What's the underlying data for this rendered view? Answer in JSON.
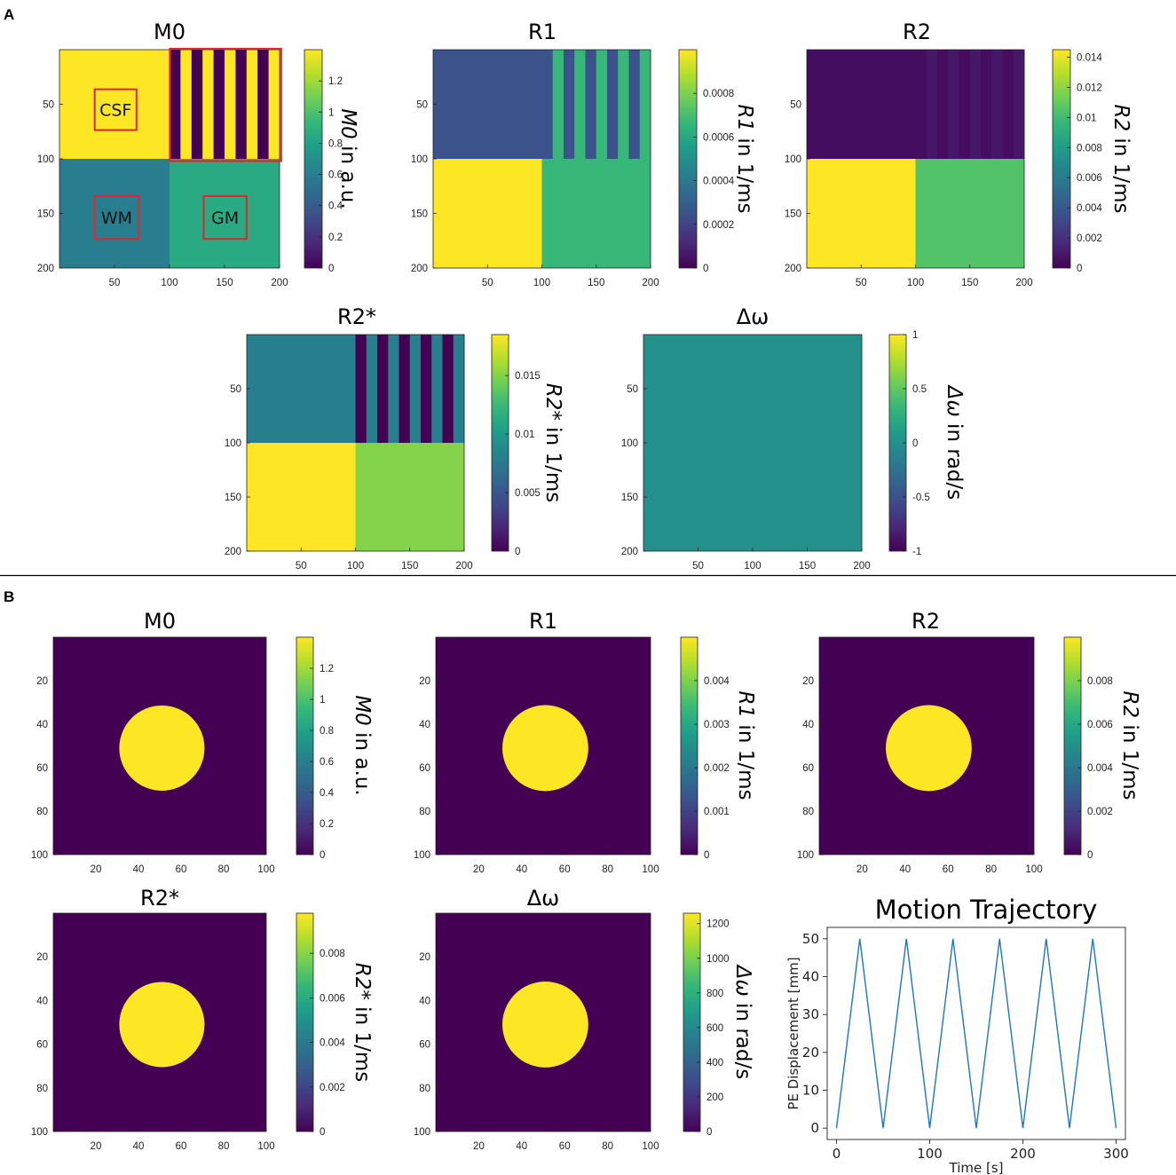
{
  "panel_labels": {
    "a": "A",
    "b": "B"
  },
  "colors": {
    "v0": "#440154",
    "v_low": "#3a528b",
    "v_mid": "#21918c",
    "v_green": "#35b779",
    "v_lime": "#7ad151",
    "v_yellow": "#fde725",
    "wm": "#2c7c8e",
    "gm": "#1fa187",
    "r1_top": "#33598c",
    "r2_top": "#481a6c",
    "r2_stripe": "#46145e",
    "r2_green": "#3fbc73",
    "r2s_top": "#2a788e",
    "roi": "#e0262b",
    "line": "#1f77b4"
  },
  "roi_labels": {
    "csf": "CSF",
    "wm": "WM",
    "gm": "GM"
  },
  "chart_data": [
    {
      "type": "heatmap",
      "id": "A-M0",
      "title": "M0",
      "cbar_label": "M0 in a.u.",
      "cbar_label_italic": "M0",
      "cbar_label_rest": " in a.u.",
      "cbar_range": [
        0,
        1.4
      ],
      "cbar_ticks": [
        "0",
        "0.2",
        "0.4",
        "0.6",
        "0.8",
        "1",
        "1.2"
      ],
      "xlim": [
        0,
        200
      ],
      "ylim": [
        0,
        200
      ],
      "xticks": [
        "50",
        "100",
        "150",
        "200"
      ],
      "yticks": [
        "50",
        "100",
        "150",
        "200"
      ],
      "regions": {
        "CSF": 1.4,
        "WM": 0.6,
        "GM": 0.85,
        "stripe_low": 0,
        "stripe_high": 1.4
      }
    },
    {
      "type": "heatmap",
      "id": "A-R1",
      "title": "R1",
      "cbar_label": "R1 in 1/ms",
      "cbar_label_italic": "R1",
      "cbar_label_rest": " in 1/ms",
      "cbar_range": [
        0,
        0.001
      ],
      "cbar_ticks": [
        "0",
        "0.0002",
        "0.0004",
        "0.0006",
        "0.0008"
      ],
      "xlim": [
        0,
        200
      ],
      "ylim": [
        0,
        200
      ],
      "xticks": [
        "50",
        "100",
        "150",
        "200"
      ],
      "yticks": [
        "50",
        "100",
        "150",
        "200"
      ],
      "regions": {
        "CSF": 0.00025,
        "WM": 0.001,
        "GM": 0.00067,
        "stripe_low": 0.00025,
        "stripe_high": 0.00067
      }
    },
    {
      "type": "heatmap",
      "id": "A-R2",
      "title": "R2",
      "cbar_label": "R2 in 1/ms",
      "cbar_label_italic": "R2",
      "cbar_label_rest": " in 1/ms",
      "cbar_range": [
        0,
        0.0145
      ],
      "cbar_ticks": [
        "0",
        "0.002",
        "0.004",
        "0.006",
        "0.008",
        "0.01",
        "0.012",
        "0.014"
      ],
      "xlim": [
        0,
        200
      ],
      "ylim": [
        0,
        200
      ],
      "xticks": [
        "50",
        "100",
        "150",
        "200"
      ],
      "yticks": [
        "50",
        "100",
        "150",
        "200"
      ],
      "regions": {
        "CSF": 0.0005,
        "WM": 0.0145,
        "GM": 0.0105,
        "stripe_low": 0.0005,
        "stripe_high": 0.0009
      }
    },
    {
      "type": "heatmap",
      "id": "A-R2s",
      "title": "R2*",
      "cbar_label": "R2* in 1/ms",
      "cbar_label_italic": "R2*",
      "cbar_label_rest": " in 1/ms",
      "cbar_range": [
        0,
        0.0185
      ],
      "cbar_ticks": [
        "0",
        "0.005",
        "0.01",
        "0.015"
      ],
      "xlim": [
        0,
        200
      ],
      "ylim": [
        0,
        200
      ],
      "xticks": [
        "50",
        "100",
        "150",
        "200"
      ],
      "yticks": [
        "50",
        "100",
        "150",
        "200"
      ],
      "regions": {
        "CSF": 0.008,
        "WM": 0.0185,
        "GM": 0.015,
        "stripe_low": 0,
        "stripe_high": 0.008
      }
    },
    {
      "type": "heatmap",
      "id": "A-dw",
      "title": "Δω",
      "cbar_label": "Δω in rad/s",
      "cbar_label_italic": "Δω",
      "cbar_label_rest": " in rad/s",
      "cbar_range": [
        -1,
        1
      ],
      "cbar_ticks": [
        "-1",
        "-0.5",
        "0",
        "0.5",
        "1"
      ],
      "xlim": [
        0,
        200
      ],
      "ylim": [
        0,
        200
      ],
      "xticks": [
        "50",
        "100",
        "150",
        "200"
      ],
      "yticks": [
        "50",
        "100",
        "150",
        "200"
      ],
      "regions": {
        "all": 0
      }
    },
    {
      "type": "heatmap",
      "id": "B-M0",
      "title": "M0",
      "cbar_label": "M0 in a.u.",
      "cbar_label_italic": "M0",
      "cbar_label_rest": " in a.u.",
      "cbar_range": [
        0,
        1.4
      ],
      "cbar_ticks": [
        "0",
        "0.2",
        "0.4",
        "0.6",
        "0.8",
        "1",
        "1.2"
      ],
      "xlim": [
        0,
        100
      ],
      "ylim": [
        0,
        100
      ],
      "xticks": [
        "20",
        "40",
        "60",
        "80",
        "100"
      ],
      "yticks": [
        "20",
        "40",
        "60",
        "80",
        "100"
      ],
      "disk": {
        "center": [
          51,
          51
        ],
        "radius": 20,
        "inside": 1.4,
        "outside": 0
      }
    },
    {
      "type": "heatmap",
      "id": "B-R1",
      "title": "R1",
      "cbar_label": "R1 in 1/ms",
      "cbar_label_italic": "R1",
      "cbar_label_rest": " in 1/ms",
      "cbar_range": [
        0,
        0.005
      ],
      "cbar_ticks": [
        "0",
        "0.001",
        "0.002",
        "0.003",
        "0.004"
      ],
      "xlim": [
        0,
        100
      ],
      "ylim": [
        0,
        100
      ],
      "xticks": [
        "20",
        "40",
        "60",
        "80",
        "100"
      ],
      "yticks": [
        "20",
        "40",
        "60",
        "80",
        "100"
      ],
      "disk": {
        "center": [
          51,
          51
        ],
        "radius": 20,
        "inside": 0.005,
        "outside": 0
      }
    },
    {
      "type": "heatmap",
      "id": "B-R2",
      "title": "R2",
      "cbar_label": "R2 in 1/ms",
      "cbar_label_italic": "R2",
      "cbar_label_rest": " in 1/ms",
      "cbar_range": [
        0,
        0.01
      ],
      "cbar_ticks": [
        "0",
        "0.002",
        "0.004",
        "0.006",
        "0.008"
      ],
      "xlim": [
        0,
        100
      ],
      "ylim": [
        0,
        100
      ],
      "xticks": [
        "20",
        "40",
        "60",
        "80",
        "100"
      ],
      "yticks": [
        "20",
        "40",
        "60",
        "80",
        "100"
      ],
      "disk": {
        "center": [
          51,
          51
        ],
        "radius": 20,
        "inside": 0.01,
        "outside": 0
      }
    },
    {
      "type": "heatmap",
      "id": "B-R2s",
      "title": "R2*",
      "cbar_label": "R2* in 1/ms",
      "cbar_label_italic": "R2*",
      "cbar_label_rest": " in 1/ms",
      "cbar_range": [
        0,
        0.0098
      ],
      "cbar_ticks": [
        "0",
        "0.002",
        "0.004",
        "0.006",
        "0.008"
      ],
      "xlim": [
        0,
        100
      ],
      "ylim": [
        0,
        100
      ],
      "xticks": [
        "20",
        "40",
        "60",
        "80",
        "100"
      ],
      "yticks": [
        "20",
        "40",
        "60",
        "80",
        "100"
      ],
      "disk": {
        "center": [
          51,
          51
        ],
        "radius": 20,
        "inside": 0.0098,
        "outside": 0
      }
    },
    {
      "type": "heatmap",
      "id": "B-dw",
      "title": "Δω",
      "cbar_label": "Δω in rad/s",
      "cbar_label_italic": "Δω",
      "cbar_label_rest": " in rad/s",
      "cbar_range": [
        0,
        1260
      ],
      "cbar_ticks": [
        "0",
        "200",
        "400",
        "600",
        "800",
        "1000",
        "1200"
      ],
      "xlim": [
        0,
        100
      ],
      "ylim": [
        0,
        100
      ],
      "xticks": [
        "20",
        "40",
        "60",
        "80",
        "100"
      ],
      "yticks": [
        "20",
        "40",
        "60",
        "80",
        "100"
      ],
      "disk": {
        "center": [
          51,
          51
        ],
        "radius": 20,
        "inside": 1260,
        "outside": 0
      }
    },
    {
      "type": "line",
      "id": "B-motion",
      "title": "Motion Trajectory",
      "xlabel": "Time [s]",
      "ylabel": "PE Displacement [mm]",
      "xlim": [
        -10,
        310
      ],
      "ylim": [
        -3,
        53
      ],
      "xticks": [
        0,
        100,
        200,
        300
      ],
      "yticks": [
        0,
        10,
        20,
        30,
        40,
        50
      ],
      "x": [
        0,
        25,
        50,
        75,
        100,
        125,
        150,
        175,
        200,
        225,
        250,
        275,
        300
      ],
      "y": [
        0,
        50,
        0,
        50,
        0,
        50,
        0,
        50,
        0,
        50,
        0,
        50,
        0
      ]
    }
  ]
}
